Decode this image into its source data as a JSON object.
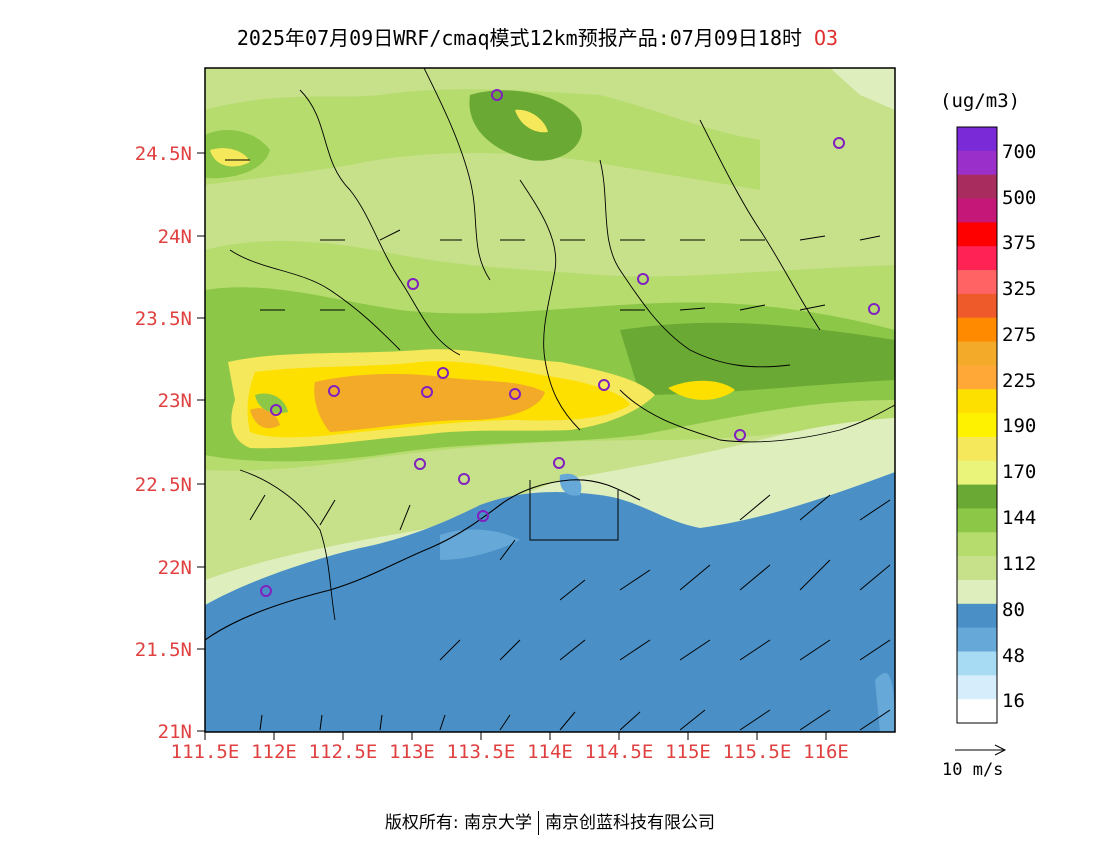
{
  "header": {
    "title": "2025年07月09日WRF/cmaq模式12km预报产品:07月09日18时",
    "species": "O3"
  },
  "axes": {
    "lat_ticks": [
      "24.5N",
      "24N",
      "23.5N",
      "23N",
      "22.5N",
      "22N",
      "21.5N",
      "21N"
    ],
    "lon_ticks": [
      "111.5E",
      "112E",
      "112.5E",
      "113E",
      "113.5E",
      "114E",
      "114.5E",
      "115E",
      "115.5E",
      "116E"
    ]
  },
  "legend": {
    "unit": "(ug/m3)",
    "levels": [
      "700",
      "500",
      "375",
      "325",
      "275",
      "225",
      "190",
      "170",
      "144",
      "112",
      "80",
      "48",
      "16"
    ],
    "colors": [
      "#7a2ad6",
      "#9b2fc9",
      "#a92c5f",
      "#c41777",
      "#ff0000",
      "#ff2255",
      "#ff6363",
      "#ee5a2a",
      "#ff8a00",
      "#f2aa28",
      "#ffa838",
      "#fde000",
      "#fff200",
      "#f5e85a",
      "#eaf47a",
      "#6aa934",
      "#8cc748",
      "#b6dc6e",
      "#c7e08a",
      "#dfeebd",
      "#4a90c6",
      "#66a8d8",
      "#a7daf3",
      "#d6eefb",
      "#ffffff"
    ]
  },
  "wind_reference": "10 m/s",
  "stations_count_note": "",
  "footer": {
    "left": "版权所有: 南京大学",
    "right": "南京创蓝科技有限公司"
  }
}
